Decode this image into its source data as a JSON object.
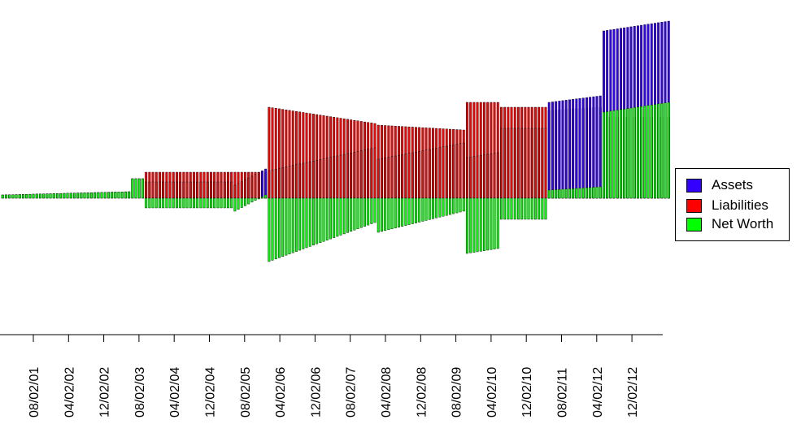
{
  "chart_data": {
    "type": "bar",
    "title": "",
    "xlabel": "",
    "ylabel": "",
    "x_tick_labels": [
      "08/02/01",
      "04/02/02",
      "12/02/02",
      "08/02/03",
      "04/02/04",
      "12/02/04",
      "08/02/05",
      "04/02/06",
      "12/02/06",
      "08/02/07",
      "04/02/08",
      "12/02/08",
      "08/02/09",
      "04/02/10",
      "12/02/10",
      "08/02/11",
      "04/02/12",
      "12/02/12"
    ],
    "colors": {
      "assets": "#3300ff",
      "liabilities": "#ff0000",
      "net_worth": "#00ff00",
      "hiloline": "#000000"
    },
    "grid": false,
    "legend_position": "right",
    "legend": [
      {
        "label": "Assets",
        "color": "#3300ff"
      },
      {
        "label": "Liabilities",
        "color": "#ff0000"
      },
      {
        "label": "Net Worth",
        "color": "#00ff00"
      }
    ],
    "segments": [
      {
        "from": 0,
        "to": 38,
        "assets": [
          0.02,
          0.04
        ],
        "liabilities": [
          0.0,
          0.0
        ]
      },
      {
        "from": 38,
        "to": 42,
        "assets": [
          0.12,
          0.12
        ],
        "liabilities": [
          0.0,
          0.0
        ]
      },
      {
        "from": 42,
        "to": 68,
        "assets": [
          0.1,
          0.1
        ],
        "liabilities": [
          0.16,
          0.16
        ]
      },
      {
        "from": 68,
        "to": 78,
        "assets": [
          0.08,
          0.18
        ],
        "liabilities": [
          0.16,
          0.16
        ]
      },
      {
        "from": 78,
        "to": 110,
        "assets": [
          0.17,
          0.31
        ],
        "liabilities": [
          0.56,
          0.46
        ]
      },
      {
        "from": 110,
        "to": 136,
        "assets": [
          0.24,
          0.34
        ],
        "liabilities": [
          0.45,
          0.42
        ]
      },
      {
        "from": 136,
        "to": 146,
        "assets": [
          0.25,
          0.28
        ],
        "liabilities": [
          0.59,
          0.59
        ]
      },
      {
        "from": 146,
        "to": 160,
        "assets": [
          0.43,
          0.43
        ],
        "liabilities": [
          0.56,
          0.56
        ]
      },
      {
        "from": 160,
        "to": 176,
        "assets": [
          0.59,
          0.63
        ],
        "liabilities": [
          0.54,
          0.56
        ]
      },
      {
        "from": 176,
        "to": 196,
        "assets": [
          1.03,
          1.09
        ],
        "liabilities": [
          0.5,
          0.5
        ]
      }
    ]
  }
}
